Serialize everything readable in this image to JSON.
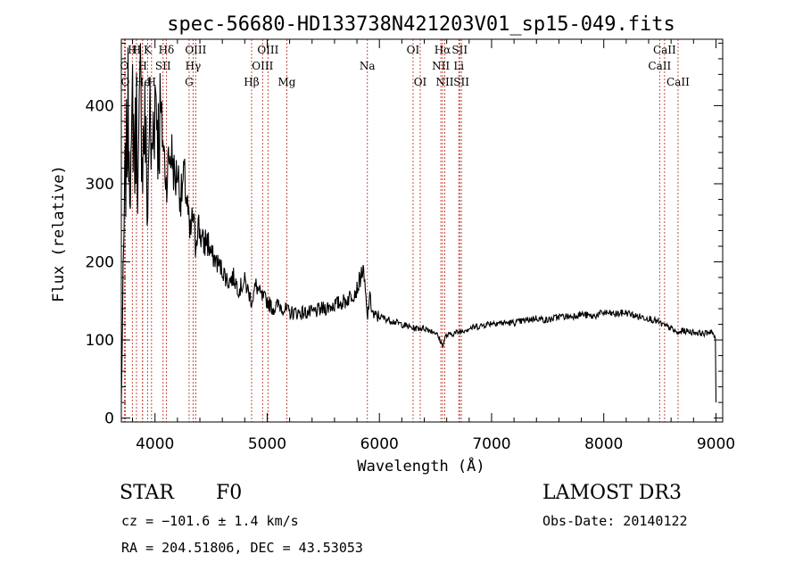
{
  "chart_data": {
    "type": "line",
    "title": "spec-56680-HD133738N421203V01_sp15-049.fits",
    "xlabel": "Wavelength (Å)",
    "ylabel": "Flux (relative)",
    "xlim": [
      3700,
      9060
    ],
    "ylim": [
      -5,
      485
    ],
    "x_ticks": [
      4000,
      5000,
      6000,
      7000,
      8000,
      9000
    ],
    "y_ticks": [
      0,
      100,
      200,
      300,
      400
    ],
    "grid": false,
    "series": [
      {
        "x": [
          3700,
          3710,
          3730,
          3760,
          3790,
          3800,
          3820,
          3835,
          3850,
          3870,
          3890,
          3910,
          3935,
          3950,
          3970,
          3990,
          4010,
          4030,
          4050,
          4080,
          4101,
          4120,
          4150,
          4180,
          4200,
          4230,
          4260,
          4290,
          4310,
          4340,
          4360,
          4380,
          4400,
          4430,
          4460,
          4500,
          4550,
          4600,
          4650,
          4700,
          4750,
          4800,
          4861,
          4900,
          4950,
          5000,
          5050,
          5100,
          5150,
          5200,
          5300,
          5400,
          5500,
          5600,
          5700,
          5800,
          5850,
          5870,
          5893,
          5910,
          5950,
          6000,
          6100,
          6200,
          6300,
          6400,
          6500,
          6540,
          6563,
          6590,
          6650,
          6700,
          6800,
          6900,
          7000,
          7100,
          7200,
          7300,
          7400,
          7500,
          7600,
          7700,
          7800,
          7900,
          8000,
          8100,
          8200,
          8300,
          8400,
          8498,
          8542,
          8600,
          8662,
          8700,
          8800,
          8900,
          8960,
          8980,
          8995,
          9000
        ],
        "y": [
          20,
          120,
          280,
          390,
          300,
          410,
          330,
          390,
          300,
          420,
          340,
          380,
          260,
          400,
          320,
          400,
          420,
          360,
          390,
          340,
          300,
          330,
          340,
          300,
          320,
          280,
          310,
          270,
          230,
          260,
          220,
          250,
          240,
          220,
          230,
          210,
          200,
          190,
          175,
          180,
          165,
          175,
          150,
          170,
          155,
          150,
          140,
          145,
          140,
          135,
          135,
          135,
          140,
          145,
          150,
          165,
          190,
          170,
          125,
          155,
          130,
          130,
          125,
          120,
          115,
          115,
          110,
          100,
          92,
          105,
          108,
          110,
          115,
          118,
          122,
          122,
          122,
          125,
          128,
          125,
          130,
          130,
          133,
          130,
          135,
          133,
          135,
          130,
          128,
          122,
          118,
          115,
          108,
          112,
          110,
          108,
          112,
          105,
          100,
          20
        ]
      }
    ],
    "lines": [
      {
        "name": "H",
        "wl": 3798,
        "row": 0
      },
      {
        "name": "O",
        "wl": 3727,
        "row": 1
      },
      {
        "name": "O",
        "wl": 3735,
        "row": 2
      },
      {
        "name": "H",
        "wl": 3835,
        "row": 0
      },
      {
        "name": "K",
        "wl": 3934,
        "row": 0
      },
      {
        "name": "H",
        "wl": 3889,
        "row": 1
      },
      {
        "name": "He",
        "wl": 3889,
        "row": 2
      },
      {
        "name": "H",
        "wl": 3969,
        "row": 2
      },
      {
        "name": "SII",
        "wl": 4072,
        "row": 1
      },
      {
        "name": "Hδ",
        "wl": 4101,
        "row": 0
      },
      {
        "name": "OIII",
        "wl": 4363,
        "row": 0
      },
      {
        "name": "Hγ",
        "wl": 4340,
        "row": 1
      },
      {
        "name": "G",
        "wl": 4304,
        "row": 2
      },
      {
        "name": "Hβ",
        "wl": 4861,
        "row": 2
      },
      {
        "name": "OIII",
        "wl": 5007,
        "row": 0
      },
      {
        "name": "OIII",
        "wl": 4959,
        "row": 1
      },
      {
        "name": "Mg",
        "wl": 5175,
        "row": 2
      },
      {
        "name": "Na",
        "wl": 5893,
        "row": 1
      },
      {
        "name": "OI",
        "wl": 6300,
        "row": 0
      },
      {
        "name": "OI",
        "wl": 6364,
        "row": 2
      },
      {
        "name": "Hα",
        "wl": 6563,
        "row": 0
      },
      {
        "name": "NII",
        "wl": 6548,
        "row": 1
      },
      {
        "name": "NII",
        "wl": 6583,
        "row": 2
      },
      {
        "name": "SII",
        "wl": 6716,
        "row": 0
      },
      {
        "name": "Li",
        "wl": 6708,
        "row": 1
      },
      {
        "name": "SII",
        "wl": 6731,
        "row": 2
      },
      {
        "name": "CaII",
        "wl": 8542,
        "row": 0
      },
      {
        "name": "CaII",
        "wl": 8498,
        "row": 1
      },
      {
        "name": "CaII",
        "wl": 8662,
        "row": 2
      }
    ]
  },
  "footer": {
    "class_label": "STAR",
    "subclass": "F0",
    "survey": "LAMOST DR3",
    "redshift": "cz = −101.6 ± 1.4 km/s",
    "obs_date": "Obs-Date: 20140122",
    "coords": "RA = 204.51806, DEC =  43.53053"
  },
  "colors": {
    "line_marker": "#c0392b",
    "spectrum": "#000000"
  }
}
